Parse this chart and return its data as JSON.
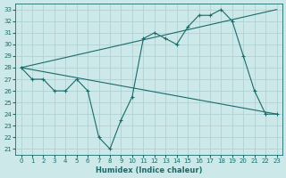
{
  "line1_x": [
    0,
    1,
    2,
    3,
    4,
    5,
    6,
    7,
    8,
    9,
    10,
    11,
    12,
    13,
    14,
    15,
    16,
    17,
    18,
    19,
    20,
    21,
    22,
    23
  ],
  "line1_y": [
    28,
    27,
    27,
    26,
    26,
    27,
    26,
    22,
    21,
    23.5,
    25.5,
    30.5,
    31,
    30.5,
    30,
    31.5,
    32.5,
    32.5,
    33,
    32,
    29,
    26,
    24,
    24
  ],
  "line2_x": [
    0,
    23
  ],
  "line2_y": [
    28,
    33
  ],
  "line3_x": [
    0,
    23
  ],
  "line3_y": [
    28,
    24
  ],
  "color": "#1a6b6b",
  "bg_color": "#cce8e8",
  "grid_color": "#aacece",
  "xlabel": "Humidex (Indice chaleur)",
  "ylim": [
    20.5,
    33.5
  ],
  "xlim": [
    -0.5,
    23.5
  ],
  "yticks": [
    21,
    22,
    23,
    24,
    25,
    26,
    27,
    28,
    29,
    30,
    31,
    32,
    33
  ],
  "xticks": [
    0,
    1,
    2,
    3,
    4,
    5,
    6,
    7,
    8,
    9,
    10,
    11,
    12,
    13,
    14,
    15,
    16,
    17,
    18,
    19,
    20,
    21,
    22,
    23
  ]
}
